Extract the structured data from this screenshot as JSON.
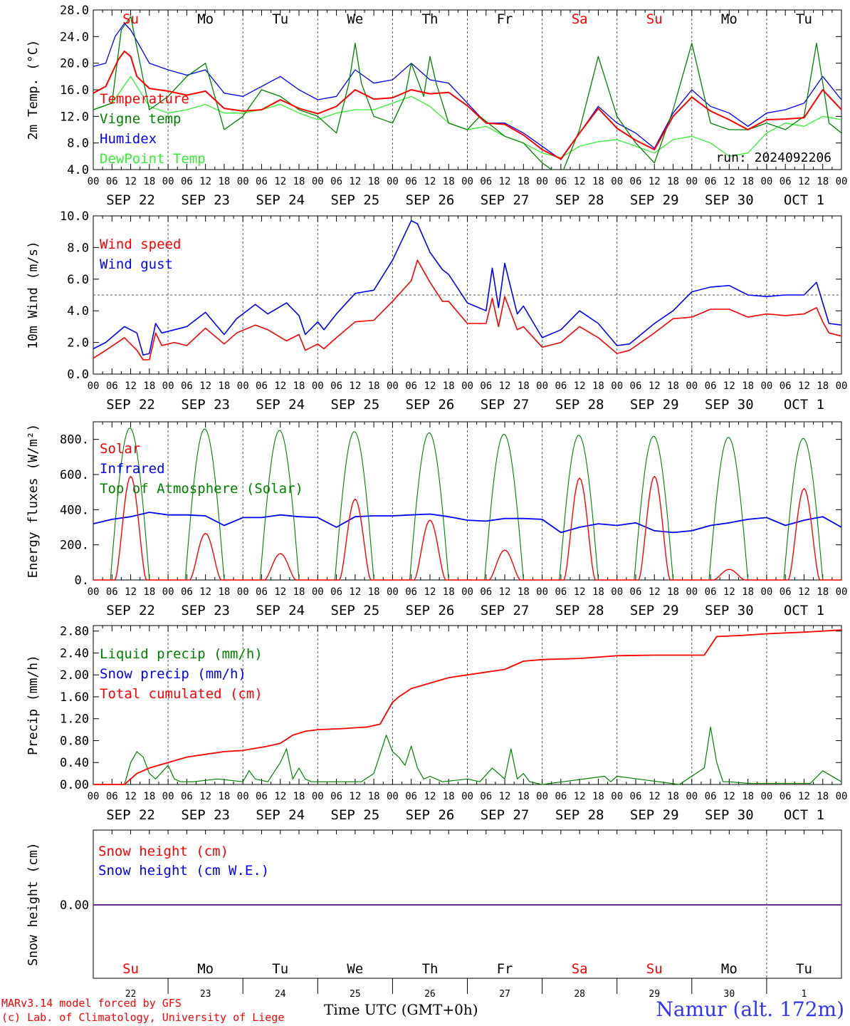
{
  "footer": {
    "credit_line1": "MARv3.14 model forced by GFS",
    "credit_line2": "(c) Lab. of Climatology, University of Liege",
    "x_title": "Time UTC (GMT+0h)",
    "station": "Namur (alt. 172m)"
  },
  "colors": {
    "red": "#ff0000",
    "green": "#008000",
    "blue": "#0000ff",
    "lightgreen": "#33ee33",
    "purple": "#6a2c91",
    "weekend_day": "#ff0000",
    "weekday_day": "#000000"
  },
  "chart_data": [
    {
      "type": "line",
      "ylabel": "2m Temp. (°C)",
      "ylim": [
        4,
        28
      ],
      "yticks": [
        "4.0",
        "8.0",
        "12.0",
        "16.0",
        "20.0",
        "24.0",
        "28.0"
      ],
      "annotation": "run: 2024092206",
      "days_top": [
        "Su",
        "Mo",
        "Tu",
        "We",
        "Th",
        "Fr",
        "Sa",
        "Su",
        "Mo",
        "Tu"
      ],
      "hour_ticks": [
        "00",
        "06",
        "12",
        "18"
      ],
      "dates": [
        "SEP 22",
        "SEP 23",
        "SEP 24",
        "SEP 25",
        "SEP 26",
        "SEP 27",
        "SEP 28",
        "SEP 29",
        "SEP 30",
        "OCT  1"
      ],
      "series": [
        {
          "name": "Temperature",
          "color": "red",
          "x": [
            0,
            4,
            8,
            10,
            12,
            14,
            18,
            24,
            30,
            36,
            42,
            48,
            54,
            60,
            66,
            72,
            78,
            84,
            90,
            96,
            102,
            108,
            114,
            120,
            126,
            132,
            138,
            144,
            150,
            156,
            162,
            168,
            174,
            180,
            186,
            192,
            198,
            204,
            210,
            216,
            222,
            228,
            234,
            240
          ],
          "values": [
            15.5,
            16.5,
            20.5,
            21.8,
            21.0,
            18.0,
            16.2,
            15.8,
            15.2,
            15.8,
            13.2,
            12.8,
            13.0,
            14.5,
            13.2,
            12.4,
            13.5,
            16.0,
            14.6,
            14.8,
            16.0,
            15.4,
            15.6,
            13.6,
            11.0,
            10.8,
            9.2,
            7.0,
            5.6,
            9.5,
            13.2,
            10.2,
            8.4,
            7.0,
            12.0,
            14.9,
            12.8,
            11.5,
            10.0,
            11.5,
            11.6,
            11.8,
            16.0,
            13.0
          ]
        },
        {
          "name": "Vigne temp",
          "color": "green",
          "x": [
            0,
            6,
            9,
            12,
            15,
            18,
            24,
            30,
            36,
            42,
            48,
            54,
            60,
            66,
            72,
            78,
            82,
            84,
            86,
            90,
            96,
            100,
            102,
            106,
            108,
            110,
            114,
            120,
            124,
            132,
            138,
            144,
            150,
            156,
            162,
            168,
            174,
            180,
            186,
            192,
            198,
            204,
            210,
            216,
            222,
            228,
            232,
            236,
            240
          ],
          "values": [
            13,
            14,
            25,
            27,
            20,
            13,
            15,
            18,
            20,
            10,
            12,
            16,
            15,
            13,
            12,
            9.5,
            17,
            23,
            17,
            12,
            11,
            15,
            20,
            15,
            21,
            17,
            11,
            10,
            12,
            9,
            8,
            5,
            3,
            10,
            21,
            12,
            8,
            5,
            13,
            23,
            11,
            10,
            10,
            11,
            10,
            12,
            23,
            11,
            9.5
          ]
        },
        {
          "name": "Humidex",
          "color": "blue",
          "x": [
            0,
            4,
            7,
            10,
            12,
            18,
            24,
            30,
            36,
            42,
            48,
            54,
            60,
            66,
            72,
            78,
            84,
            90,
            96,
            102,
            108,
            114,
            120,
            126,
            132,
            138,
            144,
            150,
            156,
            162,
            168,
            174,
            180,
            186,
            192,
            198,
            204,
            210,
            216,
            222,
            228,
            234,
            240
          ],
          "values": [
            19.5,
            20,
            24,
            26,
            25,
            20,
            19,
            18.2,
            19,
            15.5,
            15,
            16.5,
            18,
            16,
            14.5,
            15,
            19,
            17,
            17.5,
            20,
            17.5,
            17,
            14,
            11,
            11,
            9.5,
            7.5,
            5.5,
            9.5,
            13.5,
            11,
            9.5,
            7.2,
            12.5,
            16,
            13.5,
            12.5,
            10.5,
            12.5,
            13,
            14,
            18,
            14.5
          ]
        },
        {
          "name": "DewPoint Temp",
          "color": "lightgreen",
          "x": [
            0,
            6,
            12,
            18,
            24,
            30,
            36,
            42,
            48,
            54,
            60,
            66,
            72,
            78,
            84,
            90,
            96,
            102,
            108,
            114,
            120,
            126,
            132,
            138,
            144,
            150,
            156,
            162,
            168,
            174,
            180,
            186,
            192,
            198,
            204,
            210,
            216,
            222,
            228,
            234,
            240
          ],
          "values": [
            13,
            14,
            18,
            13.5,
            12.5,
            13,
            13.8,
            12.5,
            12.5,
            13,
            13.8,
            12.5,
            11.5,
            12.5,
            13,
            13,
            14,
            15,
            13.5,
            11,
            10,
            10.5,
            9,
            8,
            6.5,
            5.8,
            7.5,
            8.2,
            8.5,
            7.5,
            6.5,
            8.5,
            9,
            8,
            6,
            6.5,
            9.5,
            11,
            10.5,
            12,
            11.5
          ]
        }
      ]
    },
    {
      "type": "line",
      "ylabel": "10m Wind (m/s)",
      "ylim": [
        0,
        10
      ],
      "yticks": [
        "0.0",
        "2.0",
        "4.0",
        "6.0",
        "8.0",
        "10.0"
      ],
      "ref_line": 5,
      "hour_ticks": [
        "00",
        "06",
        "12",
        "18"
      ],
      "dates": [
        "SEP 22",
        "SEP 23",
        "SEP 24",
        "SEP 25",
        "SEP 26",
        "SEP 27",
        "SEP 28",
        "SEP 29",
        "SEP 30",
        "OCT  1"
      ],
      "series": [
        {
          "name": "Wind speed",
          "color": "red",
          "x": [
            0,
            4,
            10,
            14,
            16,
            18,
            20,
            22,
            26,
            30,
            36,
            42,
            46,
            52,
            56,
            62,
            66,
            68,
            72,
            74,
            78,
            84,
            90,
            96,
            102,
            104,
            108,
            112,
            114,
            120,
            126,
            128,
            130,
            132,
            136,
            138,
            144,
            150,
            156,
            162,
            168,
            172,
            180,
            186,
            192,
            198,
            204,
            210,
            216,
            222,
            228,
            232,
            234,
            236,
            240
          ],
          "values": [
            1.0,
            1.5,
            2.3,
            1.5,
            0.9,
            0.9,
            2.6,
            1.8,
            2.0,
            1.8,
            2.9,
            1.9,
            2.6,
            3.1,
            2.8,
            2.1,
            2.5,
            1.5,
            1.9,
            1.6,
            2.3,
            3.3,
            3.4,
            4.6,
            5.9,
            7.2,
            5.8,
            4.6,
            4.6,
            3.2,
            3.2,
            4.8,
            3.0,
            4.9,
            2.8,
            3.0,
            1.7,
            2.0,
            3.0,
            2.3,
            1.3,
            1.5,
            2.6,
            3.5,
            3.6,
            4.1,
            4.1,
            3.6,
            3.8,
            3.7,
            3.8,
            4.2,
            3.3,
            2.6,
            2.4
          ]
        },
        {
          "name": "Wind gust",
          "color": "blue",
          "x": [
            0,
            4,
            10,
            14,
            16,
            18,
            20,
            22,
            26,
            30,
            36,
            42,
            46,
            52,
            56,
            62,
            66,
            68,
            72,
            74,
            78,
            84,
            90,
            96,
            102,
            104,
            108,
            112,
            114,
            120,
            126,
            128,
            130,
            132,
            136,
            138,
            144,
            150,
            156,
            162,
            168,
            172,
            180,
            186,
            192,
            198,
            204,
            210,
            216,
            222,
            228,
            232,
            234,
            236,
            240
          ],
          "values": [
            1.6,
            2.0,
            3.0,
            2.6,
            1.2,
            1.3,
            3.2,
            2.6,
            2.8,
            3.0,
            3.9,
            2.5,
            3.5,
            4.4,
            3.8,
            4.5,
            3.7,
            2.5,
            3.3,
            2.8,
            3.8,
            5.1,
            5.3,
            7.2,
            9.7,
            9.5,
            7.7,
            6.6,
            6.3,
            4.5,
            4.0,
            6.7,
            4.2,
            7.0,
            3.8,
            4.3,
            2.3,
            2.8,
            4.0,
            3.2,
            1.8,
            1.9,
            3.2,
            4.0,
            5.2,
            5.5,
            5.6,
            5.0,
            4.9,
            5.0,
            5.0,
            5.8,
            4.5,
            3.2,
            3.1
          ]
        }
      ]
    },
    {
      "type": "line",
      "ylabel": "Energy fluxes (W/m²)",
      "ylim": [
        0,
        900
      ],
      "yticks": [
        "0.",
        "200.",
        "400.",
        "600.",
        "800."
      ],
      "hour_ticks": [
        "00",
        "06",
        "12",
        "18"
      ],
      "dates": [
        "SEP 22",
        "SEP 23",
        "SEP 24",
        "SEP 25",
        "SEP 26",
        "SEP 27",
        "SEP 28",
        "SEP 29",
        "SEP 30",
        "OCT  1"
      ],
      "toa_peaks": [
        865,
        860,
        852,
        845,
        838,
        830,
        824,
        818,
        812,
        806
      ],
      "solar_peaks": [
        590,
        265,
        150,
        460,
        340,
        170,
        580,
        590,
        60,
        520
      ],
      "series": [
        {
          "name": "Solar",
          "color": "red"
        },
        {
          "name": "Infrared",
          "color": "blue",
          "x": [
            0,
            6,
            12,
            18,
            24,
            30,
            36,
            42,
            48,
            54,
            60,
            66,
            72,
            78,
            84,
            90,
            96,
            102,
            108,
            114,
            120,
            126,
            132,
            138,
            144,
            150,
            156,
            162,
            168,
            174,
            180,
            186,
            192,
            198,
            204,
            210,
            216,
            222,
            228,
            234,
            240
          ],
          "values": [
            320,
            345,
            360,
            385,
            370,
            370,
            365,
            310,
            355,
            355,
            370,
            360,
            355,
            300,
            360,
            365,
            365,
            370,
            375,
            360,
            340,
            335,
            350,
            350,
            345,
            270,
            300,
            320,
            310,
            325,
            280,
            270,
            280,
            310,
            325,
            345,
            355,
            310,
            340,
            360,
            300
          ]
        },
        {
          "name": "Top of Atmosphere (Solar)",
          "color": "green"
        }
      ]
    },
    {
      "type": "line",
      "ylabel": "Precip (mm/h)",
      "ylim": [
        0,
        2.9
      ],
      "yticks": [
        "0.00",
        "0.40",
        "0.80",
        "1.20",
        "1.60",
        "2.00",
        "2.40",
        "2.80"
      ],
      "hour_ticks": [
        "00",
        "06",
        "12",
        "18"
      ],
      "dates": [
        "SEP 22",
        "SEP 23",
        "SEP 24",
        "SEP 25",
        "SEP 26",
        "SEP 27",
        "SEP 28",
        "SEP 29",
        "SEP 30",
        "OCT  1"
      ],
      "series": [
        {
          "name": "Liquid precip (mm/h)",
          "color": "green",
          "x": [
            0,
            10,
            12,
            14,
            16,
            18,
            20,
            24,
            26,
            28,
            32,
            40,
            48,
            50,
            52,
            56,
            60,
            62,
            64,
            66,
            68,
            70,
            72,
            80,
            86,
            90,
            94,
            96,
            98,
            100,
            102,
            104,
            106,
            108,
            112,
            120,
            124,
            128,
            132,
            134,
            136,
            138,
            140,
            144,
            164,
            166,
            168,
            188,
            196,
            198,
            200,
            202,
            204,
            210,
            230,
            234,
            240
          ],
          "values": [
            0,
            0,
            0.4,
            0.6,
            0.5,
            0.2,
            0.1,
            0.35,
            0.1,
            0.05,
            0.05,
            0.1,
            0.05,
            0.25,
            0.1,
            0.05,
            0.4,
            0.65,
            0.1,
            0.3,
            0.1,
            0.05,
            0.05,
            0.05,
            0.05,
            0.2,
            0.9,
            0.6,
            0.5,
            0.35,
            0.7,
            0.3,
            0.1,
            0.15,
            0.05,
            0.1,
            0.05,
            0.3,
            0.1,
            0.65,
            0.1,
            0.2,
            0.05,
            0,
            0.15,
            0.05,
            0.15,
            0,
            0.3,
            1.05,
            0.4,
            0.05,
            0.05,
            0.02,
            0.02,
            0.25,
            0.05
          ]
        },
        {
          "name": "Snow precip (mm/h)",
          "color": "blue"
        },
        {
          "name": "Total cumulated (cm)",
          "color": "red",
          "x": [
            0,
            10,
            14,
            18,
            24,
            30,
            36,
            42,
            48,
            56,
            60,
            64,
            68,
            72,
            80,
            88,
            92,
            94,
            96,
            98,
            102,
            108,
            114,
            120,
            132,
            138,
            144,
            156,
            168,
            180,
            190,
            196,
            200,
            208,
            216,
            228,
            240
          ],
          "values": [
            0,
            0,
            0.2,
            0.3,
            0.4,
            0.5,
            0.55,
            0.6,
            0.62,
            0.7,
            0.75,
            0.9,
            0.97,
            1.0,
            1.02,
            1.05,
            1.1,
            1.3,
            1.5,
            1.6,
            1.75,
            1.85,
            1.95,
            2.0,
            2.1,
            2.25,
            2.28,
            2.3,
            2.35,
            2.36,
            2.36,
            2.36,
            2.7,
            2.72,
            2.75,
            2.78,
            2.82
          ]
        }
      ]
    },
    {
      "type": "line",
      "ylabel": "Snow height (cm)",
      "yticks": [
        "0.00"
      ],
      "days_bottom": [
        "Su",
        "Mo",
        "Tu",
        "We",
        "Th",
        "Fr",
        "Sa",
        "Su",
        "Mo",
        "Tu"
      ],
      "day_numbers": [
        "22",
        "23",
        "24",
        "25",
        "26",
        "27",
        "28",
        "29",
        "30",
        "1"
      ],
      "series": [
        {
          "name": "Snow height (cm)",
          "color": "red",
          "values": [
            0
          ]
        },
        {
          "name": "Snow height (cm W.E.)",
          "color": "blue",
          "values": [
            0
          ]
        }
      ]
    }
  ]
}
